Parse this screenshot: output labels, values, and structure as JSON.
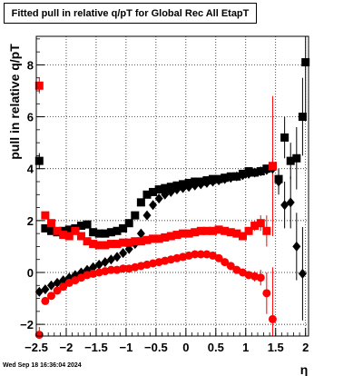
{
  "title": "Fitted pull in relative q/pT for Global Rec All EtapT",
  "timestamp": "Wed Sep 18 16:36:04 2024",
  "chart_data": {
    "type": "scatter",
    "title": "Fitted pull in relative q/pT for Global Rec All EtapT",
    "xlabel": "η",
    "ylabel": "pull in relative q/pT",
    "xlim": [
      -2.5,
      2.05
    ],
    "ylim": [
      -2.45,
      9.1
    ],
    "grid": true,
    "x_ticks": [
      -2.5,
      -2,
      -1.5,
      -1,
      -0.5,
      0,
      0.5,
      1,
      1.5,
      2
    ],
    "x_tick_labels": [
      "−2.5",
      "−2",
      "−1.5",
      "−1",
      "−0.5",
      "0",
      "0.5",
      "1",
      "1.5",
      "2"
    ],
    "y_ticks": [
      -2,
      0,
      2,
      4,
      6,
      8
    ],
    "y_tick_labels": [
      "−2",
      "0",
      "2",
      "4",
      "6",
      "8"
    ],
    "series": [
      {
        "marker": "square",
        "color": "#000000",
        "x": [
          -2.45,
          -2.35,
          -2.25,
          -2.15,
          -2.05,
          -1.95,
          -1.85,
          -1.75,
          -1.65,
          -1.55,
          -1.45,
          -1.35,
          -1.25,
          -1.15,
          -1.05,
          -0.95,
          -0.85,
          -0.75,
          -0.65,
          -0.55,
          -0.45,
          -0.35,
          -0.25,
          -0.15,
          -0.05,
          0.05,
          0.15,
          0.25,
          0.35,
          0.45,
          0.55,
          0.65,
          0.75,
          0.85,
          0.95,
          1.05,
          1.15,
          1.25,
          1.35,
          1.45,
          1.55,
          1.65,
          1.75,
          1.85,
          1.95,
          2.0
        ],
        "y": [
          4.3,
          1.7,
          1.6,
          1.55,
          1.6,
          1.65,
          1.7,
          1.8,
          1.85,
          1.55,
          1.5,
          1.5,
          1.55,
          1.6,
          1.7,
          1.9,
          2.2,
          2.7,
          3.0,
          3.1,
          3.2,
          3.25,
          3.3,
          3.35,
          3.4,
          3.45,
          3.5,
          3.5,
          3.55,
          3.6,
          3.6,
          3.65,
          3.7,
          3.7,
          3.8,
          3.9,
          3.85,
          3.9,
          4.0,
          4.1,
          3.6,
          5.2,
          4.3,
          4.4,
          6.0,
          8.1
        ],
        "yerr": [
          0.3,
          0.05,
          0.05,
          0.05,
          0.05,
          0.05,
          0.05,
          0.05,
          0.05,
          0.05,
          0.05,
          0.05,
          0.05,
          0.05,
          0.05,
          0.05,
          0.05,
          0.05,
          0.05,
          0.05,
          0.05,
          0.05,
          0.05,
          0.05,
          0.05,
          0.05,
          0.05,
          0.05,
          0.05,
          0.05,
          0.05,
          0.05,
          0.05,
          0.05,
          0.05,
          0.08,
          0.08,
          0.1,
          0.15,
          0.3,
          0.4,
          0.8,
          0.7,
          1.2,
          1.5,
          2.0
        ]
      },
      {
        "marker": "diamond",
        "color": "#000000",
        "x": [
          -2.45,
          -2.35,
          -2.25,
          -2.15,
          -2.05,
          -1.95,
          -1.85,
          -1.75,
          -1.65,
          -1.55,
          -1.45,
          -1.35,
          -1.25,
          -1.15,
          -1.05,
          -0.95,
          -0.85,
          -0.75,
          -0.65,
          -0.55,
          -0.45,
          -0.35,
          -0.25,
          -0.15,
          -0.05,
          0.05,
          0.15,
          0.25,
          0.35,
          0.45,
          0.55,
          0.65,
          0.75,
          0.85,
          0.95,
          1.05,
          1.15,
          1.25,
          1.35,
          1.45,
          1.55,
          1.65,
          1.75,
          1.85,
          1.95
        ],
        "y": [
          -0.75,
          -0.65,
          -0.5,
          -0.4,
          -0.3,
          -0.2,
          -0.1,
          0.0,
          0.1,
          0.2,
          0.3,
          0.4,
          0.5,
          0.6,
          0.75,
          0.9,
          1.1,
          1.5,
          2.2,
          2.6,
          2.85,
          3.0,
          3.1,
          3.2,
          3.25,
          3.3,
          3.35,
          3.4,
          3.45,
          3.5,
          3.55,
          3.6,
          3.65,
          3.7,
          3.75,
          3.8,
          3.85,
          3.9,
          3.95,
          4.0,
          3.5,
          2.6,
          2.7,
          1.0,
          -0.05
        ],
        "yerr": [
          0.05,
          0.05,
          0.05,
          0.05,
          0.05,
          0.05,
          0.05,
          0.05,
          0.05,
          0.05,
          0.05,
          0.05,
          0.05,
          0.05,
          0.05,
          0.05,
          0.05,
          0.05,
          0.05,
          0.05,
          0.05,
          0.05,
          0.05,
          0.05,
          0.05,
          0.05,
          0.05,
          0.05,
          0.05,
          0.05,
          0.05,
          0.05,
          0.05,
          0.05,
          0.05,
          0.08,
          0.08,
          0.1,
          0.15,
          0.3,
          0.5,
          0.9,
          1.0,
          1.3,
          1.8
        ]
      },
      {
        "marker": "square",
        "color": "#ff0000",
        "x": [
          -2.45,
          -2.35,
          -2.25,
          -2.15,
          -2.05,
          -1.95,
          -1.85,
          -1.75,
          -1.65,
          -1.55,
          -1.45,
          -1.35,
          -1.25,
          -1.15,
          -1.05,
          -0.95,
          -0.85,
          -0.75,
          -0.65,
          -0.55,
          -0.45,
          -0.35,
          -0.25,
          -0.15,
          -0.05,
          0.05,
          0.15,
          0.25,
          0.35,
          0.45,
          0.55,
          0.65,
          0.75,
          0.85,
          0.95,
          1.05,
          1.15,
          1.25,
          1.35,
          1.45
        ],
        "y": [
          7.2,
          2.2,
          1.9,
          1.6,
          1.45,
          1.4,
          1.6,
          1.4,
          1.2,
          1.1,
          1.05,
          1.05,
          1.1,
          1.1,
          1.15,
          1.15,
          1.2,
          1.2,
          1.25,
          1.3,
          1.3,
          1.35,
          1.4,
          1.45,
          1.5,
          1.5,
          1.55,
          1.6,
          1.6,
          1.6,
          1.65,
          1.6,
          1.55,
          1.5,
          1.4,
          1.6,
          1.8,
          1.9,
          1.6,
          4.1
        ],
        "yerr": [
          0.3,
          0.05,
          0.05,
          0.05,
          0.05,
          0.05,
          0.05,
          0.05,
          0.05,
          0.05,
          0.05,
          0.05,
          0.05,
          0.05,
          0.05,
          0.05,
          0.05,
          0.05,
          0.05,
          0.05,
          0.05,
          0.05,
          0.05,
          0.05,
          0.05,
          0.05,
          0.05,
          0.05,
          0.05,
          0.05,
          0.05,
          0.05,
          0.05,
          0.08,
          0.1,
          0.15,
          0.2,
          0.3,
          0.6,
          2.7
        ]
      },
      {
        "marker": "circle",
        "color": "#ff0000",
        "x": [
          -2.45,
          -2.35,
          -2.25,
          -2.15,
          -2.05,
          -1.95,
          -1.85,
          -1.75,
          -1.65,
          -1.55,
          -1.45,
          -1.35,
          -1.25,
          -1.15,
          -1.05,
          -0.95,
          -0.85,
          -0.75,
          -0.65,
          -0.55,
          -0.45,
          -0.35,
          -0.25,
          -0.15,
          -0.05,
          0.05,
          0.15,
          0.25,
          0.35,
          0.45,
          0.55,
          0.65,
          0.75,
          0.85,
          0.95,
          1.05,
          1.15,
          1.25,
          1.35,
          1.45
        ],
        "y": [
          -2.4,
          -1.1,
          -0.9,
          -0.7,
          -0.55,
          -0.4,
          -0.3,
          -0.2,
          -0.1,
          -0.05,
          0.0,
          0.05,
          0.1,
          0.1,
          0.15,
          0.15,
          0.2,
          0.25,
          0.3,
          0.35,
          0.4,
          0.45,
          0.5,
          0.55,
          0.6,
          0.65,
          0.7,
          0.7,
          0.7,
          0.65,
          0.55,
          0.4,
          0.25,
          0.1,
          0.0,
          -0.1,
          -0.15,
          -0.2,
          -0.8,
          -1.8
        ],
        "yerr": [
          0.3,
          0.05,
          0.05,
          0.05,
          0.05,
          0.05,
          0.05,
          0.05,
          0.05,
          0.05,
          0.05,
          0.05,
          0.05,
          0.05,
          0.05,
          0.05,
          0.05,
          0.05,
          0.05,
          0.05,
          0.05,
          0.05,
          0.05,
          0.05,
          0.05,
          0.05,
          0.05,
          0.05,
          0.05,
          0.05,
          0.05,
          0.05,
          0.05,
          0.08,
          0.1,
          0.15,
          0.2,
          0.3,
          0.8,
          2.0
        ]
      }
    ]
  }
}
